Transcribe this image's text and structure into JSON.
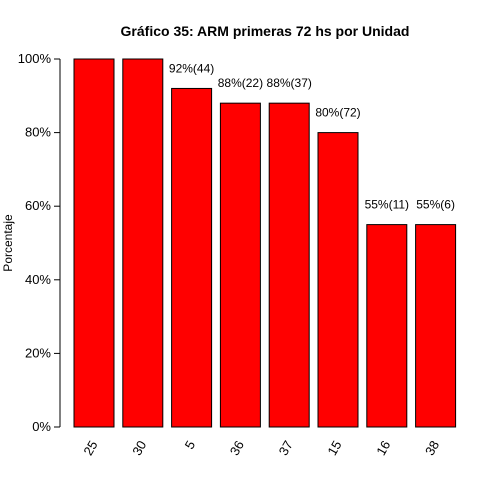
{
  "chart_data": {
    "type": "bar",
    "title": "Gráfico 35: ARM primeras 72 hs por Unidad",
    "xlabel": "",
    "ylabel": "Porcentaje",
    "categories": [
      "25",
      "30",
      "5",
      "36",
      "37",
      "15",
      "16",
      "38"
    ],
    "values": [
      100,
      100,
      92,
      88,
      88,
      80,
      55,
      55
    ],
    "data_labels": [
      "",
      "",
      "92%(44)",
      "88%(22)",
      "88%(37)",
      "80%(72)",
      "55%(11)",
      "55%(6)"
    ],
    "ylim": [
      0,
      100
    ],
    "yticks": [
      0,
      20,
      40,
      60,
      80,
      100
    ],
    "ytick_labels": [
      "0%",
      "20%",
      "40%",
      "60%",
      "80%",
      "100%"
    ],
    "bar_color": "#ff0000",
    "grid": false,
    "legend": "none"
  }
}
